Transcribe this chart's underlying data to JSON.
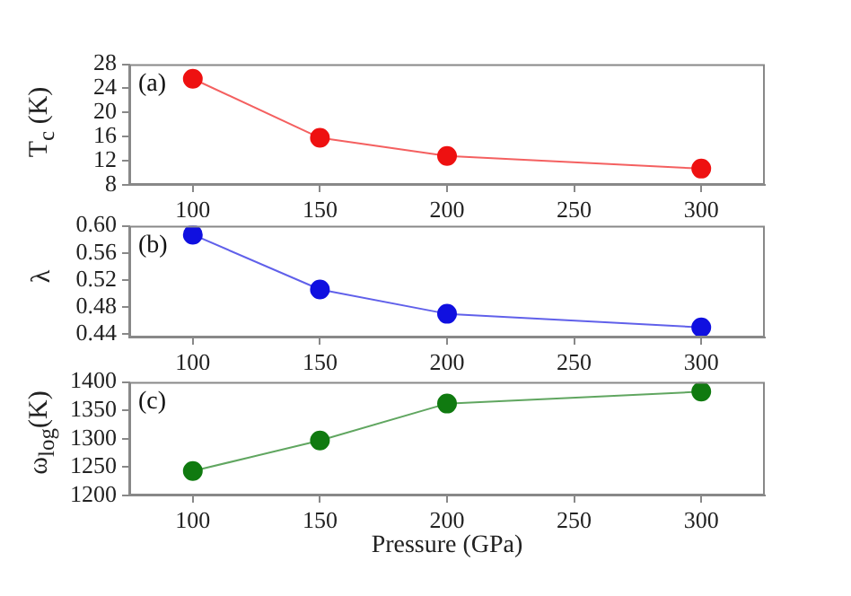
{
  "chart_data": [
    {
      "type": "line",
      "ylabel": "T$_{c}$ (K)",
      "annotations": [
        "(a)"
      ],
      "x": [
        100,
        150,
        200,
        300
      ],
      "xlim": [
        75,
        325
      ],
      "xticks": [
        100,
        150,
        200,
        250,
        300
      ],
      "ylim": [
        8,
        28
      ],
      "yticks": [
        8,
        12,
        16,
        20,
        24,
        28
      ],
      "grid": false,
      "legend": false,
      "marker": "circle",
      "series": [
        {
          "color": "#ee1111",
          "values": [
            25.6,
            15.8,
            12.8,
            10.7
          ]
        }
      ]
    },
    {
      "type": "line",
      "ylabel": "λ",
      "annotations": [
        "(b)"
      ],
      "x": [
        100,
        150,
        200,
        300
      ],
      "xlim": [
        75,
        325
      ],
      "xticks": [
        100,
        150,
        200,
        250,
        300
      ],
      "ylim": [
        0.435,
        0.6
      ],
      "yticks": [
        0.44,
        0.48,
        0.52,
        0.56,
        {
          "value": 0.6,
          "label": "0.60"
        }
      ],
      "grid": false,
      "legend": false,
      "marker": "circle",
      "series": [
        {
          "color": "#1010e0",
          "values": [
            0.587,
            0.506,
            0.47,
            0.45
          ]
        }
      ]
    },
    {
      "type": "line",
      "xlabel": "Pressure (GPa)",
      "ylabel": "ω$_{log}$(K)",
      "annotations": [
        "(c)"
      ],
      "x": [
        100,
        150,
        200,
        300
      ],
      "xlim": [
        75,
        325
      ],
      "xticks": [
        100,
        150,
        200,
        250,
        300
      ],
      "ylim": [
        1200,
        1400
      ],
      "yticks": [
        1200,
        1250,
        1300,
        1350,
        1400
      ],
      "grid": false,
      "legend": false,
      "marker": "circle",
      "series": [
        {
          "color": "#107a10",
          "values": [
            1243,
            1297,
            1362,
            1383
          ]
        }
      ]
    }
  ]
}
